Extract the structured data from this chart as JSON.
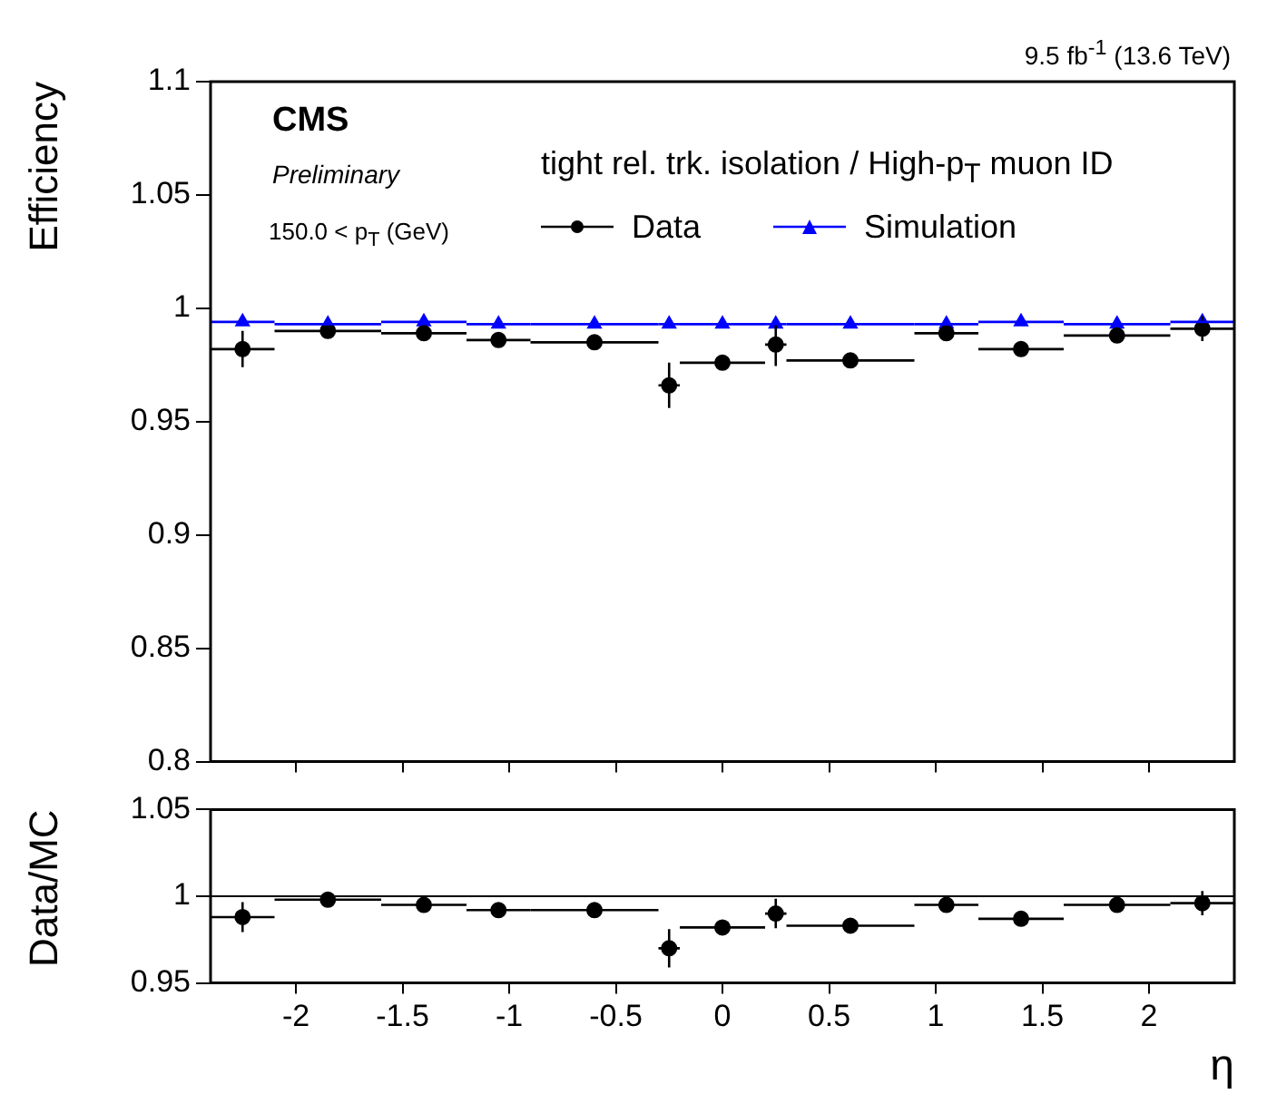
{
  "chart_data": [
    {
      "type": "scatter",
      "ylabel": "Efficiency",
      "legend_title": "tight rel. trk. isolation / High-p$_{T}$ muon ID",
      "legend": "top",
      "tick_labels": "y",
      "grid": false,
      "annotations": [
        "9.5 fb$^{-1}$ (13.6 TeV)",
        "CMS",
        "Preliminary",
        "150.0 < p$_{T}$ (GeV)"
      ],
      "xlim": [
        -2.4,
        2.4
      ],
      "xticks": [
        {
          "value": -2,
          "label": null
        },
        {
          "value": -1.5,
          "label": null
        },
        {
          "value": -1,
          "label": null
        },
        {
          "value": -0.5,
          "label": null
        },
        {
          "value": 0,
          "label": null
        },
        {
          "value": 0.5,
          "label": null
        },
        {
          "value": 1,
          "label": null
        },
        {
          "value": 1.5,
          "label": null
        },
        {
          "value": 2,
          "label": null
        }
      ],
      "ylim": [
        0.8,
        1.1
      ],
      "yticks": [
        0.8,
        0.85,
        0.9,
        0.95,
        1,
        1.05,
        1.1
      ],
      "series": [
        {
          "name": "Data",
          "color": "#000000",
          "marker": "circle",
          "x": [
            -2.25,
            -1.85,
            -1.4,
            -1.05,
            -0.6,
            -0.25,
            0,
            0.25,
            0.6,
            1.05,
            1.4,
            1.85,
            2.25
          ],
          "values": [
            0.982,
            0.99,
            0.989,
            0.986,
            0.985,
            0.966,
            0.976,
            0.984,
            0.977,
            0.989,
            0.982,
            0.988,
            0.991
          ],
          "errors": [
            0.008,
            0.002,
            0.002,
            0.002,
            0.002,
            0.01,
            0.002,
            0.0095,
            0.002,
            0.002,
            0.002,
            0.002,
            0.0055
          ],
          "xerrors": [
            0.15,
            0.25,
            0.2,
            0.15,
            0.3,
            0.05,
            0.2,
            0.05,
            0.3,
            0.15,
            0.2,
            0.25,
            0.15
          ]
        },
        {
          "name": "Simulation",
          "color": "#0000ff",
          "marker": "triangle",
          "x": [
            -2.25,
            -1.85,
            -1.4,
            -1.05,
            -0.6,
            -0.25,
            0,
            0.25,
            0.6,
            1.05,
            1.4,
            1.85,
            2.25
          ],
          "values": [
            0.994,
            0.993,
            0.994,
            0.993,
            0.993,
            0.993,
            0.993,
            0.993,
            0.993,
            0.993,
            0.994,
            0.993,
            0.994
          ],
          "xerrors": [
            0.15,
            0.25,
            0.2,
            0.15,
            0.3,
            0.05,
            0.2,
            0.05,
            0.3,
            0.15,
            0.2,
            0.25,
            0.15
          ]
        }
      ]
    },
    {
      "type": "scatter",
      "xlabel": "η",
      "ylabel": "Data/MC",
      "grid": false,
      "xlim": [
        -2.4,
        2.4
      ],
      "xticks": [
        -2,
        -1.5,
        -1,
        -0.5,
        0,
        0.5,
        1,
        1.5,
        2
      ],
      "ylim": [
        0.95,
        1.05
      ],
      "yticks": [
        0.95,
        1,
        1.05
      ],
      "ref_lines": [
        {
          "axis": "y",
          "value": 1,
          "color": "#000000"
        }
      ],
      "series": [
        {
          "color": "#000000",
          "marker": "circle",
          "x": [
            -2.25,
            -1.85,
            -1.4,
            -1.05,
            -0.6,
            -0.25,
            0,
            0.25,
            0.6,
            1.05,
            1.4,
            1.85,
            2.25
          ],
          "values": [
            0.988,
            0.998,
            0.995,
            0.992,
            0.992,
            0.97,
            0.982,
            0.99,
            0.983,
            0.995,
            0.987,
            0.995,
            0.996
          ],
          "errors": [
            0.0086,
            0.002,
            0.002,
            0.002,
            0.002,
            0.011,
            0.002,
            0.0085,
            0.002,
            0.002,
            0.002,
            0.002,
            0.007
          ],
          "xerrors": [
            0.15,
            0.25,
            0.2,
            0.15,
            0.3,
            0.05,
            0.2,
            0.05,
            0.3,
            0.15,
            0.2,
            0.25,
            0.15
          ]
        }
      ]
    }
  ]
}
